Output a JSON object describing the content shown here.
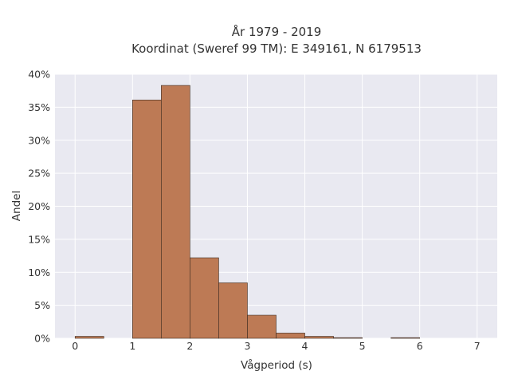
{
  "chart_data": {
    "type": "bar",
    "title_line1": "År 1979 - 2019",
    "title_line2": "Koordinat (Sweref 99 TM): E 349161, N 6179513",
    "xlabel": "Vågperiod (s)",
    "ylabel": "Andel",
    "xlim": [
      -0.35,
      7.35
    ],
    "ylim": [
      0,
      0.4
    ],
    "x_ticks": [
      0,
      1,
      2,
      3,
      4,
      5,
      6,
      7
    ],
    "x_tick_labels": [
      "0",
      "1",
      "2",
      "3",
      "4",
      "5",
      "6",
      "7"
    ],
    "y_ticks": [
      0,
      0.05,
      0.1,
      0.15,
      0.2,
      0.25,
      0.3,
      0.35,
      0.4
    ],
    "y_tick_labels": [
      "0%",
      "5%",
      "10%",
      "15%",
      "20%",
      "25%",
      "30%",
      "35%",
      "40%"
    ],
    "bins": [
      {
        "x0": 0.0,
        "x1": 0.5,
        "value": 0.003
      },
      {
        "x0": 0.5,
        "x1": 1.0,
        "value": 0.0
      },
      {
        "x0": 1.0,
        "x1": 1.5,
        "value": 0.361
      },
      {
        "x0": 1.5,
        "x1": 2.0,
        "value": 0.383
      },
      {
        "x0": 2.0,
        "x1": 2.5,
        "value": 0.122
      },
      {
        "x0": 2.5,
        "x1": 3.0,
        "value": 0.084
      },
      {
        "x0": 3.0,
        "x1": 3.5,
        "value": 0.035
      },
      {
        "x0": 3.5,
        "x1": 4.0,
        "value": 0.008
      },
      {
        "x0": 4.0,
        "x1": 4.5,
        "value": 0.003
      },
      {
        "x0": 4.5,
        "x1": 5.0,
        "value": 0.001
      },
      {
        "x0": 5.0,
        "x1": 5.5,
        "value": 0.0
      },
      {
        "x0": 5.5,
        "x1": 6.0,
        "value": 0.001
      }
    ],
    "grid": true,
    "colors": {
      "bar_fill": "#bd7a55",
      "bar_stroke": "#3a2a20",
      "plot_bg": "#e9e9f1",
      "grid": "#ffffff"
    }
  }
}
